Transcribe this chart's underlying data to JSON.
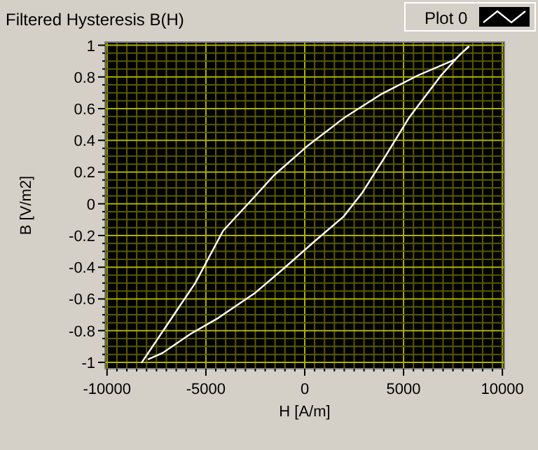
{
  "chart_data": {
    "type": "line",
    "title": "Filtered Hysteresis B(H)",
    "xlabel": "H [A/m]",
    "ylabel": "B [V/m2]",
    "xlim": [
      -10100,
      10100
    ],
    "xticks": [
      -10000,
      {
        "value": -9500,
        "label": null
      },
      {
        "value": -9000,
        "label": null
      },
      {
        "value": -8500,
        "label": null
      },
      {
        "value": -8000,
        "label": null
      },
      {
        "value": -7500,
        "label": null
      },
      {
        "value": -7000,
        "label": null
      },
      {
        "value": -6500,
        "label": null
      },
      {
        "value": -6000,
        "label": null
      },
      {
        "value": -5500,
        "label": null
      },
      -5000,
      {
        "value": -4500,
        "label": null
      },
      {
        "value": -4000,
        "label": null
      },
      {
        "value": -3500,
        "label": null
      },
      {
        "value": -3000,
        "label": null
      },
      {
        "value": -2500,
        "label": null
      },
      {
        "value": -2000,
        "label": null
      },
      {
        "value": -1500,
        "label": null
      },
      {
        "value": -1000,
        "label": null
      },
      {
        "value": -500,
        "label": null
      },
      0,
      {
        "value": 500,
        "label": null
      },
      {
        "value": 1000,
        "label": null
      },
      {
        "value": 1500,
        "label": null
      },
      {
        "value": 2000,
        "label": null
      },
      {
        "value": 2500,
        "label": null
      },
      {
        "value": 3000,
        "label": null
      },
      {
        "value": 3500,
        "label": null
      },
      {
        "value": 4000,
        "label": null
      },
      {
        "value": 4500,
        "label": null
      },
      5000,
      {
        "value": 5500,
        "label": null
      },
      {
        "value": 6000,
        "label": null
      },
      {
        "value": 6500,
        "label": null
      },
      {
        "value": 7000,
        "label": null
      },
      {
        "value": 7500,
        "label": null
      },
      {
        "value": 8000,
        "label": null
      },
      {
        "value": 8500,
        "label": null
      },
      {
        "value": 9000,
        "label": null
      },
      {
        "value": 9500,
        "label": null
      },
      10000
    ],
    "ylim": [
      -1.04,
      1.02
    ],
    "yticks": [
      -1,
      {
        "value": -0.95,
        "label": null
      },
      {
        "value": -0.9,
        "label": null
      },
      {
        "value": -0.85,
        "label": null
      },
      -0.8,
      {
        "value": -0.75,
        "label": null
      },
      {
        "value": -0.7,
        "label": null
      },
      {
        "value": -0.65,
        "label": null
      },
      -0.6,
      {
        "value": -0.55,
        "label": null
      },
      {
        "value": -0.5,
        "label": null
      },
      {
        "value": -0.45,
        "label": null
      },
      -0.4,
      {
        "value": -0.35,
        "label": null
      },
      {
        "value": -0.3,
        "label": null
      },
      {
        "value": -0.25,
        "label": null
      },
      -0.2,
      {
        "value": -0.15,
        "label": null
      },
      {
        "value": -0.1,
        "label": null
      },
      {
        "value": -0.05,
        "label": null
      },
      0,
      {
        "value": 0.05,
        "label": null
      },
      {
        "value": 0.1,
        "label": null
      },
      {
        "value": 0.15,
        "label": null
      },
      0.2,
      {
        "value": 0.25,
        "label": null
      },
      {
        "value": 0.3,
        "label": null
      },
      {
        "value": 0.35,
        "label": null
      },
      0.4,
      {
        "value": 0.45,
        "label": null
      },
      {
        "value": 0.5,
        "label": null
      },
      {
        "value": 0.55,
        "label": null
      },
      0.6,
      {
        "value": 0.65,
        "label": null
      },
      {
        "value": 0.7,
        "label": null
      },
      {
        "value": 0.75,
        "label": null
      },
      0.8,
      {
        "value": 0.85,
        "label": null
      },
      {
        "value": 0.9,
        "label": null
      },
      {
        "value": 0.95,
        "label": null
      },
      1
    ],
    "grid": true,
    "legend": "top right",
    "line_style": "solid",
    "marker": "none",
    "series": [
      {
        "name": "Plot 0",
        "color": "#ffffff",
        "x": [
          -8240,
          -5540,
          -4130,
          -2720,
          -1550,
          90,
          1970,
          3850,
          5730,
          7610,
          8260,
          8300,
          7840,
          6900,
          5260,
          4080,
          2910,
          1970,
          560,
          -1080,
          -2490,
          -4370,
          -5770,
          -7180,
          -7900
        ],
        "values": [
          -1,
          -0.5,
          -0.17,
          0.02,
          0.18,
          0.36,
          0.54,
          0.69,
          0.81,
          0.91,
          0.99,
          0.99,
          0.94,
          0.81,
          0.54,
          0.3,
          0.07,
          -0.08,
          -0.23,
          -0.41,
          -0.56,
          -0.72,
          -0.82,
          -0.94,
          -0.98
        ]
      }
    ]
  }
}
